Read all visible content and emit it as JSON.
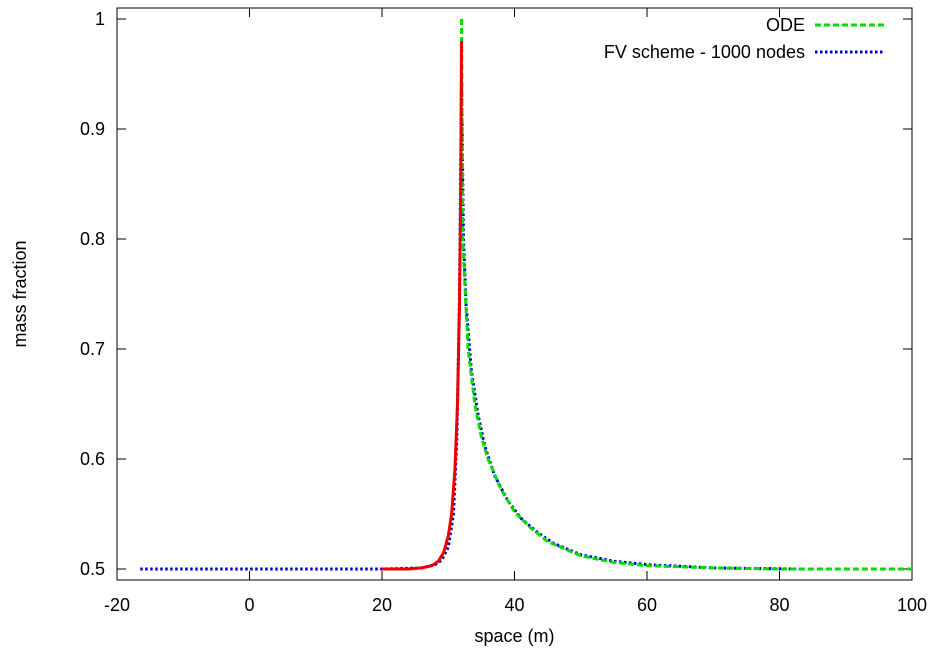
{
  "chart_data": {
    "type": "line",
    "title": "",
    "xlabel": "space (m)",
    "ylabel": "mass fraction",
    "xlim": [
      -20,
      100
    ],
    "ylim": [
      0.49,
      1.01
    ],
    "xticks": [
      -20,
      0,
      20,
      40,
      60,
      80,
      100
    ],
    "xtick_labels": [
      "-20",
      "0",
      "20",
      "40",
      "60",
      "80",
      "100"
    ],
    "yticks": [
      0.5,
      0.6,
      0.7,
      0.8,
      0.9,
      1.0
    ],
    "ytick_labels": [
      "0.5",
      "0.6",
      "0.7",
      "0.8",
      "0.9",
      "1"
    ],
    "grid": false,
    "legend_position": "top-right",
    "series": [
      {
        "name": "ODE",
        "color": "#00dd00",
        "dash": "dashed",
        "x": [
          32.0,
          32.2,
          32.5,
          33.0,
          34.0,
          35.0,
          36.0,
          38.0,
          40.0,
          42.5,
          45.0,
          50.0,
          55.0,
          60.0,
          70.0,
          80.0,
          90.0,
          100.0
        ],
        "y": [
          1.0,
          0.8,
          0.76,
          0.7,
          0.65,
          0.62,
          0.6,
          0.572,
          0.552,
          0.537,
          0.525,
          0.512,
          0.506,
          0.503,
          0.501,
          0.5,
          0.5,
          0.5
        ]
      },
      {
        "name": "FV scheme - 1000 nodes",
        "color": "#0000cc",
        "dash": "dotted",
        "x": [
          -16.5,
          0.0,
          20.0,
          26.0,
          28.0,
          29.0,
          30.0,
          30.8,
          31.3,
          31.7,
          32.0,
          32.3,
          32.7,
          33.5,
          34.5,
          35.5,
          37.0,
          39.0,
          41.0,
          43.5,
          46.0,
          50.0,
          55.0,
          60.0,
          70.0,
          83.0
        ],
        "y": [
          0.5,
          0.5,
          0.5,
          0.501,
          0.504,
          0.508,
          0.52,
          0.55,
          0.62,
          0.75,
          0.945,
          0.8,
          0.74,
          0.68,
          0.64,
          0.612,
          0.585,
          0.562,
          0.546,
          0.533,
          0.523,
          0.513,
          0.507,
          0.504,
          0.501,
          0.5
        ]
      },
      {
        "color": "#ee0000",
        "dash": "solid",
        "x": [
          20.0,
          24.0,
          26.0,
          27.5,
          28.5,
          29.3,
          30.0,
          30.5,
          31.0,
          31.4,
          31.7,
          31.9,
          32.0
        ],
        "y": [
          0.5,
          0.5,
          0.501,
          0.503,
          0.507,
          0.515,
          0.53,
          0.55,
          0.59,
          0.65,
          0.74,
          0.85,
          0.98
        ]
      }
    ]
  }
}
